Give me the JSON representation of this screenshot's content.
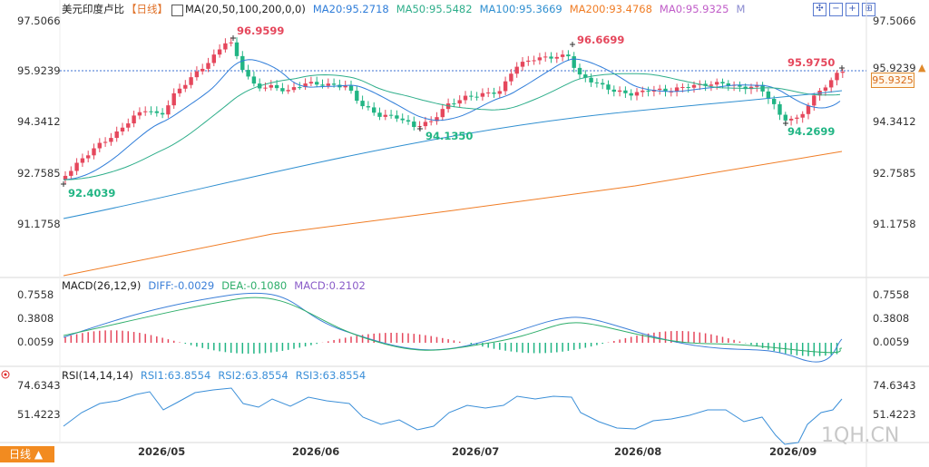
{
  "main_legend": {
    "title": "美元印度卢比",
    "period": "【日线】",
    "ma_label": "MA(20,50,100,200,0,0)",
    "ma20": "MA20:95.2718",
    "ma50": "MA50:95.5482",
    "ma100": "MA100:95.3669",
    "ma200": "MA200:93.4768",
    "ma0": "MA0:95.9325",
    "m": "M"
  },
  "price_axis": [
    "97.5066",
    "95.9239",
    "94.3412",
    "92.7585",
    "91.1758"
  ],
  "current_price": "95.9325",
  "annotations": {
    "high1": "96.9599",
    "high2": "96.6699",
    "high3": "95.9750",
    "low1": "92.4039",
    "low2": "94.1350",
    "low3": "94.2699"
  },
  "macd_legend": {
    "label": "MACD(26,12,9)",
    "diff": "DIFF:-0.0029",
    "dea": "DEA:-0.1080",
    "macd": "MACD:0.2102"
  },
  "macd_axis": [
    "0.7558",
    "0.3808",
    "0.0059"
  ],
  "rsi_legend": {
    "label": "RSI(14,14,14)",
    "rsi1": "RSI1:63.8554",
    "rsi2": "RSI2:63.8554",
    "rsi3": "RSI3:63.8554"
  },
  "rsi_axis": [
    "74.6343",
    "51.4223"
  ],
  "dates": [
    "2026/05",
    "2026/06",
    "2026/07",
    "2026/08",
    "2026/09"
  ],
  "period_button": "日线 ▲",
  "watermark": "1QH.CN",
  "colors": {
    "up": "#e5475c",
    "down": "#21b584",
    "ma20": "#2f7dd9",
    "ma50": "#2eae8a",
    "ma100": "#2f8fd0",
    "ma200": "#f07c24",
    "diff": "#3b7fd8",
    "dea": "#2eae6a"
  }
}
